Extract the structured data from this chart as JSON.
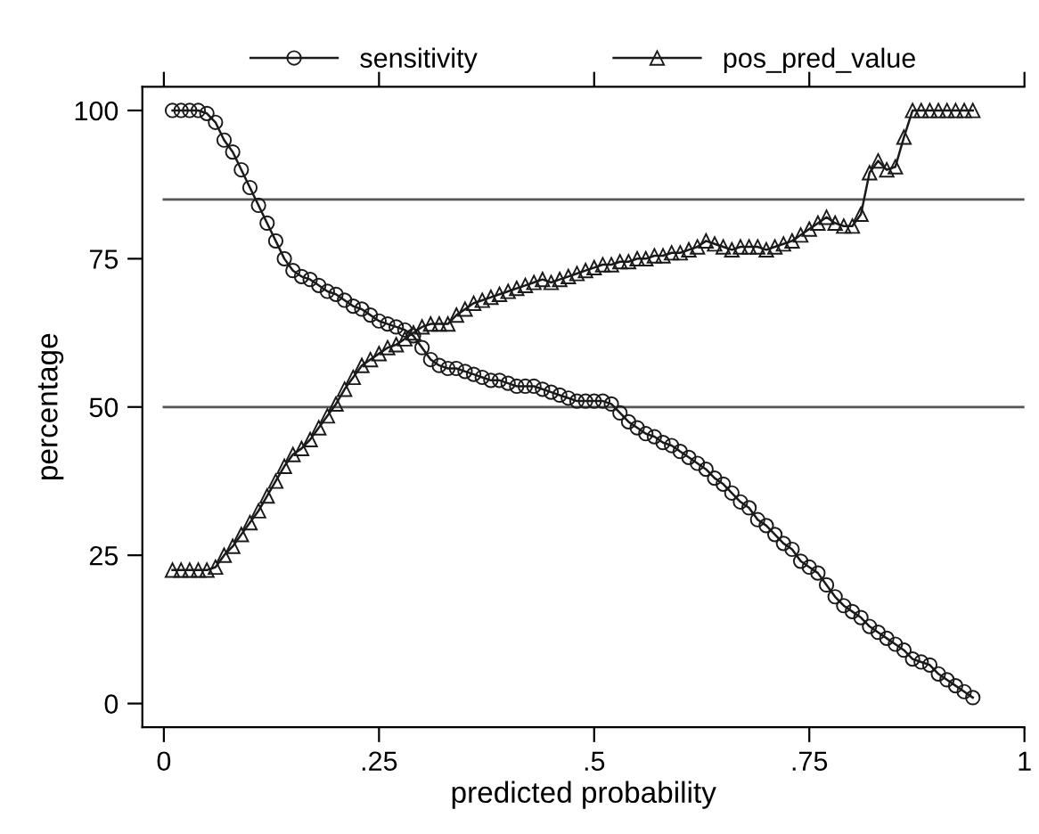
{
  "chart_data": {
    "type": "line",
    "xlabel": "predicted probability",
    "ylabel": "percentage",
    "x": [
      0.01,
      0.02,
      0.03,
      0.04,
      0.05,
      0.06,
      0.07,
      0.08,
      0.09,
      0.1,
      0.11,
      0.12,
      0.13,
      0.14,
      0.15,
      0.16,
      0.17,
      0.18,
      0.19,
      0.2,
      0.21,
      0.22,
      0.23,
      0.24,
      0.25,
      0.26,
      0.27,
      0.28,
      0.29,
      0.3,
      0.31,
      0.32,
      0.33,
      0.34,
      0.35,
      0.36,
      0.37,
      0.38,
      0.39,
      0.4,
      0.41,
      0.42,
      0.43,
      0.44,
      0.45,
      0.46,
      0.47,
      0.48,
      0.49,
      0.5,
      0.51,
      0.52,
      0.53,
      0.54,
      0.55,
      0.56,
      0.57,
      0.58,
      0.59,
      0.6,
      0.61,
      0.62,
      0.63,
      0.64,
      0.65,
      0.66,
      0.67,
      0.68,
      0.69,
      0.7,
      0.71,
      0.72,
      0.73,
      0.74,
      0.75,
      0.76,
      0.77,
      0.78,
      0.79,
      0.8,
      0.81,
      0.82,
      0.83,
      0.84,
      0.85,
      0.86,
      0.87,
      0.88,
      0.89,
      0.9,
      0.91,
      0.92,
      0.93,
      0.94
    ],
    "series": [
      {
        "name": "sensitivity",
        "color": "#1a1a1a",
        "marker": "circle",
        "values": [
          100,
          100,
          100,
          100,
          99.5,
          98,
          95,
          93,
          90,
          87,
          84,
          81,
          78,
          75,
          73,
          72,
          71.5,
          70.5,
          69.5,
          69,
          68,
          67,
          66.5,
          65.5,
          64.5,
          64,
          63.5,
          63,
          62,
          60,
          58,
          57,
          56.5,
          56.5,
          56,
          55.5,
          55,
          54.5,
          54.5,
          54,
          53.5,
          53.5,
          53.5,
          53,
          52.5,
          52,
          51.5,
          51,
          51,
          51,
          51,
          50.5,
          49,
          47.5,
          46.5,
          45.5,
          45,
          44,
          43.5,
          42.5,
          41.5,
          40.5,
          39.5,
          38,
          37,
          35.5,
          34,
          33,
          31,
          30,
          28.5,
          27,
          26,
          24,
          23,
          22,
          20,
          18,
          16.5,
          15.5,
          14.5,
          13,
          12,
          11,
          10,
          9,
          7.5,
          7,
          6.5,
          5,
          4,
          3,
          2,
          1
        ]
      },
      {
        "name": "pos_pred_value",
        "color": "#1a1a1a",
        "marker": "triangle",
        "values": [
          22.5,
          22.5,
          22.5,
          22.5,
          22.5,
          23,
          25,
          26.5,
          28.5,
          30.5,
          32.5,
          35,
          37.5,
          40,
          42,
          43,
          44.5,
          46.5,
          48.5,
          50.5,
          53,
          55,
          57,
          58,
          59,
          60,
          60.5,
          61.5,
          62.5,
          63.5,
          64,
          64,
          64,
          65.5,
          66.5,
          67.5,
          68,
          68.5,
          69,
          69.5,
          70,
          70.5,
          71,
          71.5,
          71,
          71.5,
          72,
          72.5,
          73,
          73.5,
          74,
          74,
          74.5,
          74.5,
          75,
          75,
          75.5,
          75.5,
          76,
          76,
          76.5,
          77,
          78,
          77.5,
          77,
          76.5,
          77,
          77,
          77,
          76.5,
          77,
          77.5,
          78,
          79,
          80,
          81,
          82,
          81,
          80.5,
          80.5,
          82.5,
          89.5,
          91.5,
          90,
          90.5,
          95.5,
          100,
          100,
          100,
          100,
          100,
          100,
          100,
          100
        ]
      }
    ],
    "xlim": [
      -0.025,
      1.0
    ],
    "ylim": [
      -4,
      104
    ],
    "xticks": [
      0,
      {
        "value": 0.25,
        "label": ".25"
      },
      {
        "value": 0.5,
        "label": ".5"
      },
      {
        "value": 0.75,
        "label": ".75"
      },
      1
    ],
    "yticks": [
      0,
      25,
      50,
      75,
      100
    ],
    "ref_lines": [
      {
        "axis": "y",
        "value": 85,
        "color": "#555555"
      },
      {
        "axis": "y",
        "value": 50,
        "color": "#555555"
      }
    ],
    "legend": "top",
    "grid": false,
    "line_style": "solid"
  }
}
